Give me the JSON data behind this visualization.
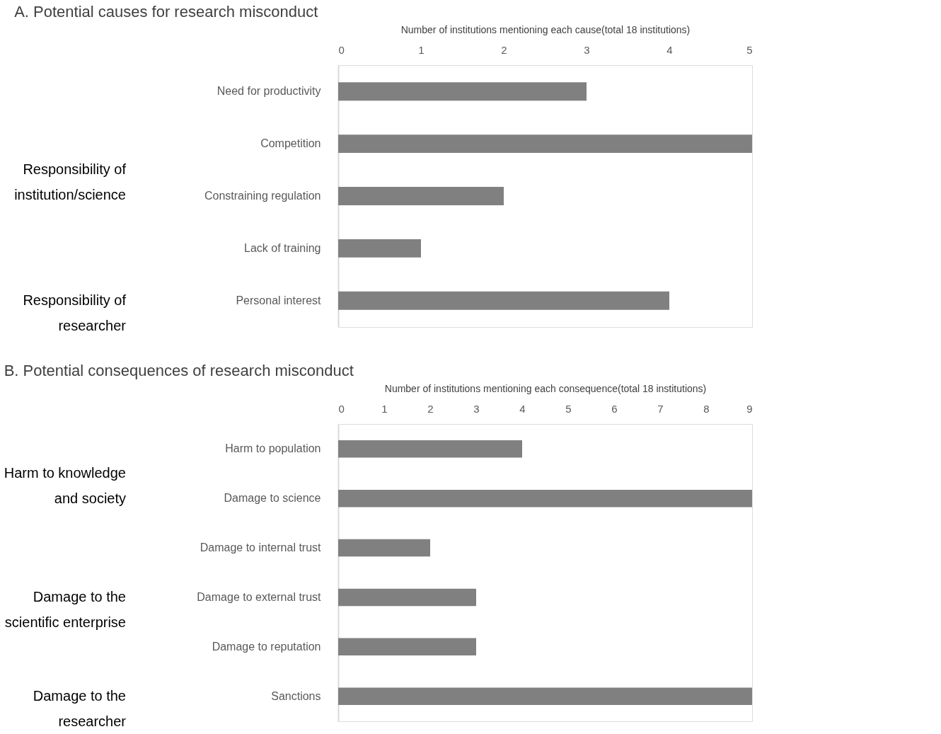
{
  "chart_data": [
    {
      "type": "bar",
      "orientation": "horizontal",
      "title": "A. Potential causes for research misconduct",
      "xlabel": "Number of institutions mentioning each cause(total 18 institutions)",
      "categories": [
        "Need for productivity",
        "Competition",
        "Constraining regulation",
        "Lack of training",
        "Personal interest"
      ],
      "values": [
        3,
        5,
        2,
        1,
        4
      ],
      "color": "#808080",
      "xlim": [
        0,
        5
      ],
      "xticks": [
        0,
        1,
        2,
        3,
        4,
        5
      ],
      "grid": false,
      "annotations": [
        "Responsibility of\ninstitution/science",
        "Responsibility of\nresearcher"
      ]
    },
    {
      "type": "bar",
      "orientation": "horizontal",
      "title": "B. Potential consequences of research misconduct",
      "xlabel": "Number of institutions mentioning each consequence(total 18 institutions)",
      "categories": [
        "Harm to population",
        "Damage to science",
        "Damage to internal trust",
        "Damage to external trust",
        "Damage to reputation",
        "Sanctions"
      ],
      "values": [
        4,
        9,
        2,
        3,
        3,
        9
      ],
      "color": "#808080",
      "xlim": [
        0,
        9
      ],
      "xticks": [
        0,
        1,
        2,
        3,
        4,
        5,
        6,
        7,
        8,
        9
      ],
      "grid": false,
      "annotations": [
        "Harm to knowledge\nand society",
        "Damage to the\nscientific enterprise",
        "Damage to the\nresearcher"
      ]
    }
  ]
}
